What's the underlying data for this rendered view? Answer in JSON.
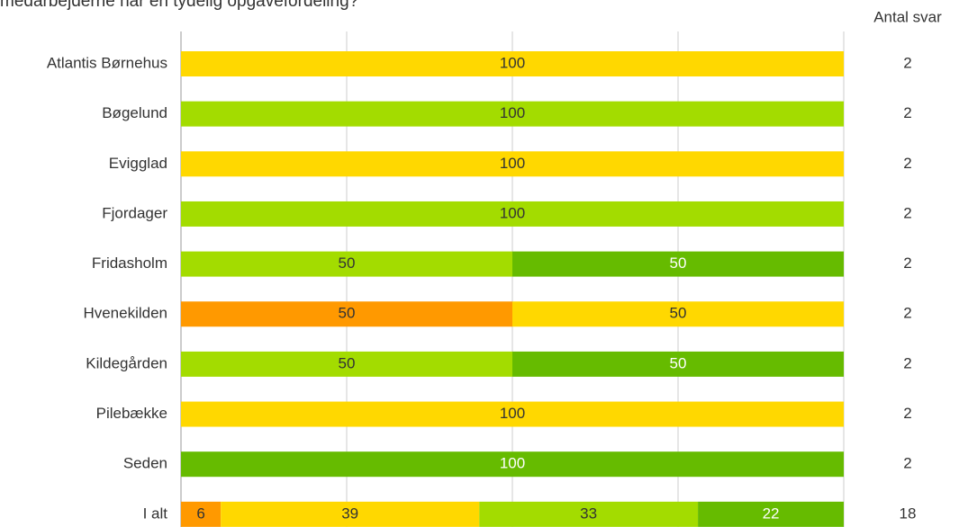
{
  "chart_data": {
    "type": "stacked_bar_horizontal",
    "title": "medarbejderne har en tydelig opgavefordeling?",
    "categories": [
      "Atlantis Børnehus",
      "Bøgelund",
      "Evigglad",
      "Fjordager",
      "Fridasholm",
      "Hvenekilden",
      "Kildegården",
      "Pilebække",
      "Seden",
      "I alt"
    ],
    "series": [
      {
        "color": "#ff9900",
        "label_color": "#333333",
        "values": [
          null,
          null,
          null,
          null,
          null,
          50,
          null,
          null,
          null,
          6
        ]
      },
      {
        "color": "#ffd800",
        "label_color": "#333333",
        "values": [
          100,
          null,
          100,
          null,
          null,
          50,
          null,
          100,
          null,
          39
        ]
      },
      {
        "color": "#a3dc00",
        "label_color": "#333333",
        "values": [
          null,
          100,
          null,
          100,
          50,
          null,
          50,
          null,
          null,
          33
        ]
      },
      {
        "color": "#66bb00",
        "label_color": "#ffffff",
        "values": [
          null,
          null,
          null,
          null,
          50,
          null,
          50,
          null,
          100,
          22
        ]
      }
    ],
    "xlim": [
      0,
      100
    ],
    "xticks": [
      0,
      25,
      50,
      75,
      100
    ],
    "grid": true,
    "counts_label": "Antal svar",
    "counts": [
      2,
      2,
      2,
      2,
      2,
      2,
      2,
      2,
      2,
      18
    ]
  }
}
